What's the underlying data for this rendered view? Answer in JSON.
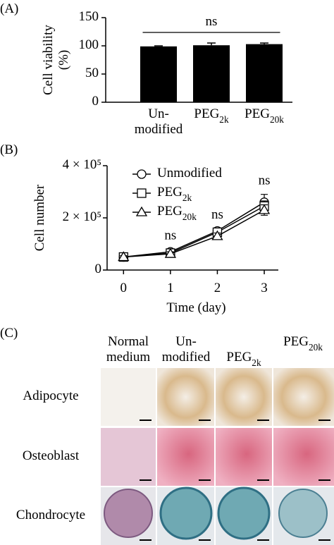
{
  "chart_data": [
    {
      "type": "bar",
      "panel_label": "(A)",
      "ylabel_lines": [
        "Cell viability",
        "(%)"
      ],
      "categories": [
        "Un-modified",
        "PEG2k",
        "PEG20k"
      ],
      "values": [
        99,
        101,
        103
      ],
      "errors": [
        1,
        4,
        2
      ],
      "color": "#000000",
      "ylim": [
        0,
        150
      ],
      "yticks": [
        0,
        50,
        100,
        150
      ],
      "annotations": [
        {
          "text": "ns"
        }
      ]
    },
    {
      "type": "line",
      "panel_label": "(B)",
      "xlabel": "Time (day)",
      "ylabel": "Cell number",
      "x": [
        0,
        1,
        2,
        3
      ],
      "xlim": [
        -0.35,
        3.3
      ],
      "xticks": [
        0,
        1,
        2,
        3
      ],
      "ylim": [
        0,
        400000
      ],
      "yticks": [
        0,
        {
          "value": 200000,
          "label": "2 × 10⁵"
        },
        {
          "value": 400000,
          "label": "4 × 10⁵"
        }
      ],
      "series": [
        {
          "name": "Unmodified",
          "marker": "circle",
          "color": "#000000",
          "values": [
            50000,
            70000,
            150000,
            260000
          ],
          "errors": [
            5000,
            10000,
            10000,
            30000
          ]
        },
        {
          "name": "PEG2k",
          "marker": "square",
          "color": "#000000",
          "values": [
            50000,
            65000,
            145000,
            245000
          ],
          "errors": [
            5000,
            8000,
            12000,
            20000
          ]
        },
        {
          "name": "PEG20k",
          "marker": "triangle",
          "color": "#000000",
          "values": [
            50000,
            62000,
            130000,
            230000
          ],
          "errors": [
            5000,
            8000,
            12000,
            20000
          ]
        }
      ],
      "annotations": [
        {
          "x": 1,
          "text": "ns"
        },
        {
          "x": 2,
          "text": "ns"
        },
        {
          "x": 3,
          "text": "ns"
        }
      ]
    }
  ],
  "panel_c": {
    "panel_label": "(C)",
    "columns": [
      "Normal medium",
      "Un-modified",
      "PEG2k",
      "PEG20k"
    ],
    "rows": [
      "Adipocyte",
      "Osteoblast",
      "Chondrocyte"
    ]
  }
}
